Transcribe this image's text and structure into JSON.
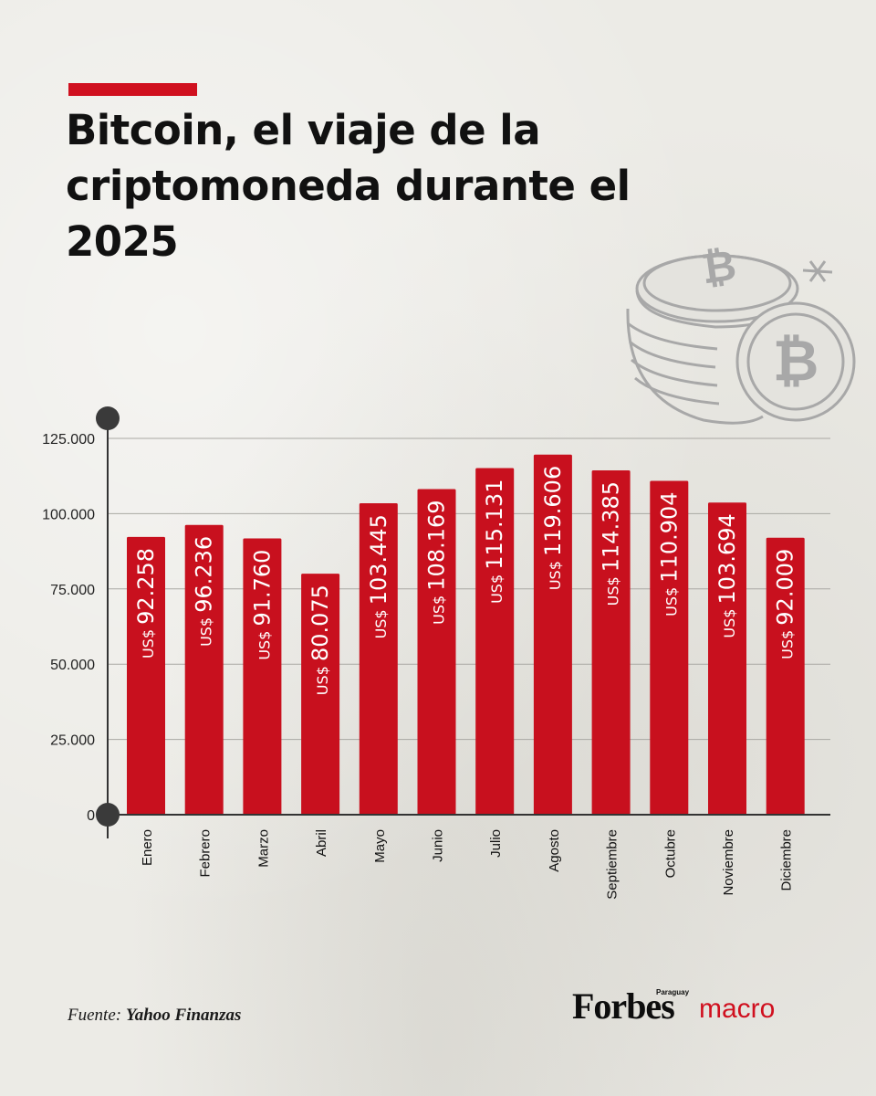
{
  "title": "Bitcoin, el viaje de la criptomoneda durante el 2025",
  "source": {
    "prefix": "Fuente:",
    "name": "Yahoo Finanzas"
  },
  "brand": {
    "name": "Forbes",
    "country": "Paraguay",
    "suffix": "macro"
  },
  "colors": {
    "accent": "#d0101f",
    "bar": "#c8101e",
    "text": "#111111",
    "coins": "#a8a8a8"
  },
  "decor": {
    "icon": "bitcoin-coins-illustration"
  },
  "chart_data": {
    "type": "bar",
    "categories": [
      "Enero",
      "Febrero",
      "Marzo",
      "Abril",
      "Mayo",
      "Junio",
      "Julio",
      "Agosto",
      "Septiembre",
      "Octubre",
      "Noviembre",
      "Diciembre"
    ],
    "values": [
      92258,
      96236,
      91760,
      80075,
      103445,
      108169,
      115131,
      119606,
      114385,
      110904,
      103694,
      92009
    ],
    "value_labels": [
      "92.258",
      "96.236",
      "91.760",
      "80.075",
      "103.445",
      "108.169",
      "115.131",
      "119.606",
      "114.385",
      "110.904",
      "103.694",
      "92.009"
    ],
    "value_prefix": "US$",
    "ylim": [
      0,
      125000
    ],
    "yticks": [
      0,
      25000,
      50000,
      75000,
      100000,
      125000
    ],
    "ytick_labels": [
      "0",
      "25.000",
      "50.000",
      "75.000",
      "100.000",
      "125.000"
    ],
    "grid": true,
    "xlabel": "",
    "ylabel": ""
  }
}
